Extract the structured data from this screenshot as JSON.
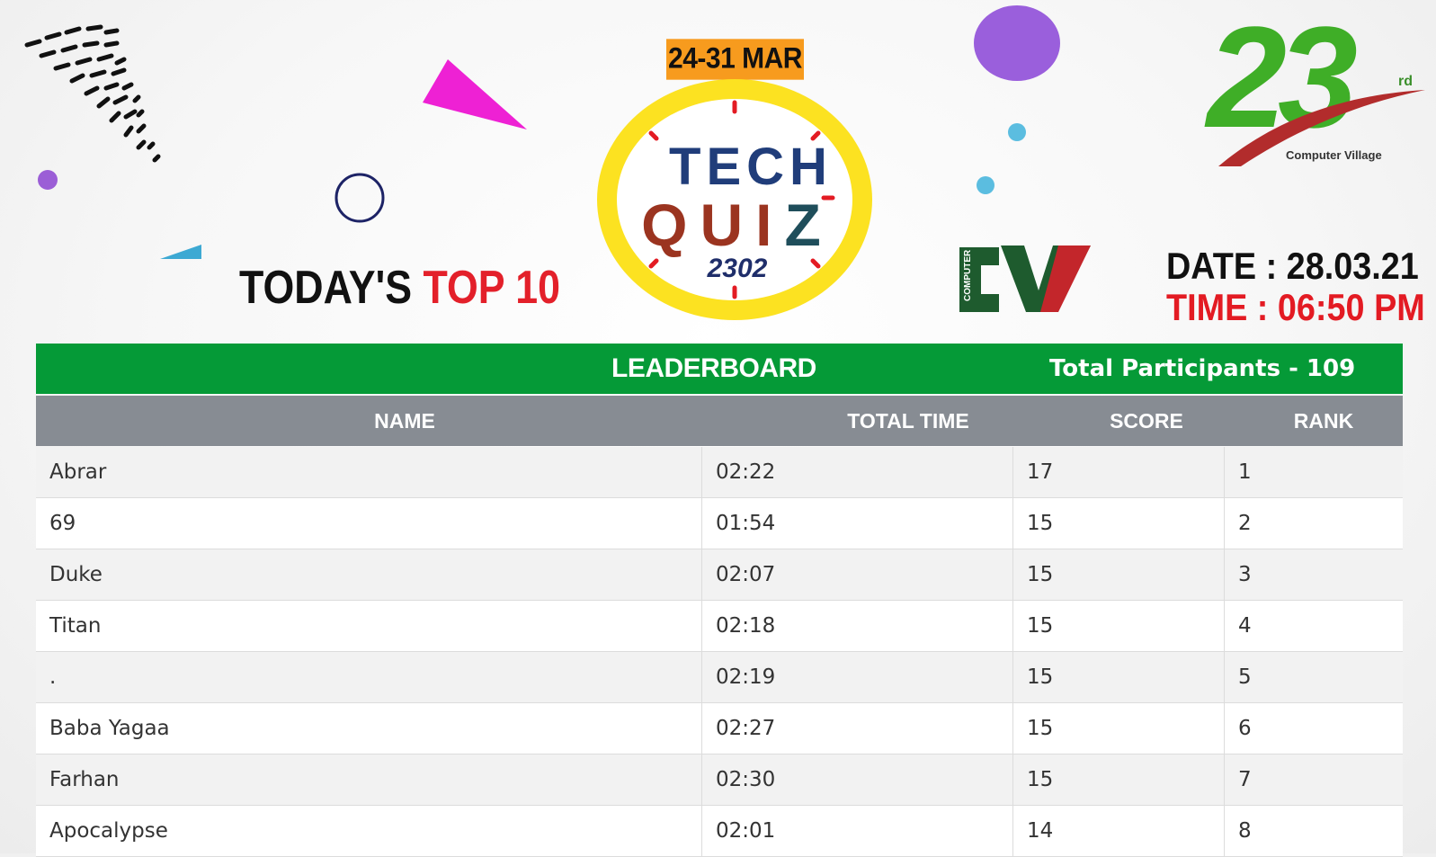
{
  "header": {
    "date_range": "24-31 MAR",
    "quiz_word1": "TECH",
    "quiz_word2_a": "QUI",
    "quiz_word2_b": "Z",
    "quiz_number": "2302",
    "top10_black": "TODAY'S",
    "top10_red": "TOP 10",
    "anniversary_number": "23",
    "anniversary_suffix": "rd",
    "anniversary_brand": "Computer Village",
    "logo_letters": "CV",
    "date_line": "DATE : 28.03.21",
    "time_line": "TIME : 06:50 PM"
  },
  "leaderboard": {
    "title": "LEADERBOARD",
    "total_participants": "Total Participants - 109",
    "columns": {
      "name": "NAME",
      "time": "TOTAL TIME",
      "score": "SCORE",
      "rank": "RANK"
    },
    "rows": [
      {
        "name": "Abrar",
        "time": "02:22",
        "score": "17",
        "rank": "1"
      },
      {
        "name": "69",
        "time": "01:54",
        "score": "15",
        "rank": "2"
      },
      {
        "name": "Duke",
        "time": "02:07",
        "score": "15",
        "rank": "3"
      },
      {
        "name": "Titan",
        "time": "02:18",
        "score": "15",
        "rank": "4"
      },
      {
        "name": ".",
        "time": "02:19",
        "score": "15",
        "rank": "5"
      },
      {
        "name": "Baba Yagaa",
        "time": "02:27",
        "score": "15",
        "rank": "6"
      },
      {
        "name": "Farhan",
        "time": "02:30",
        "score": "15",
        "rank": "7"
      },
      {
        "name": "Apocalypse",
        "time": "02:01",
        "score": "14",
        "rank": "8"
      }
    ]
  },
  "colors": {
    "green_bar": "#059a37",
    "header_gray": "#878c93",
    "accent_red": "#e3202a",
    "ring_yellow": "#fce221",
    "badge_orange": "#f79b1e"
  }
}
